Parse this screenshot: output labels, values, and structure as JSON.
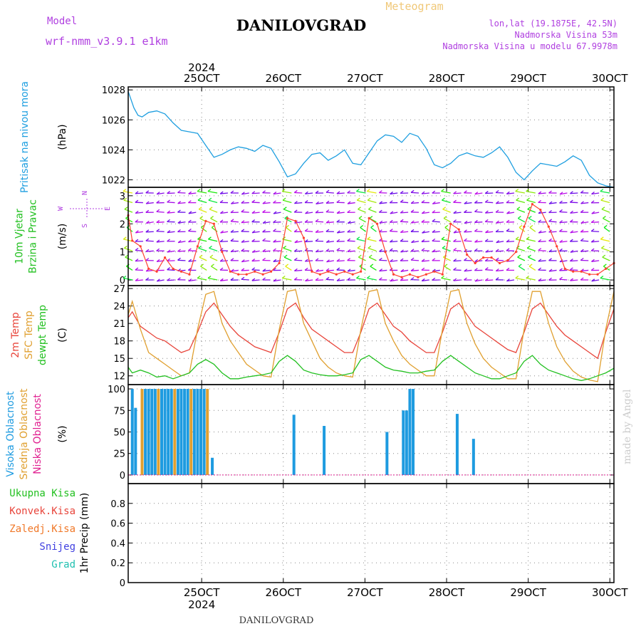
{
  "header": {
    "model_label": "Model",
    "model_value": "wrf-nmm_v3.9.1  e1km",
    "title": "DANILOVGRAD",
    "product": "Meteogram",
    "lonlat": "lon,lat (19.1875E, 42.5N)",
    "altitude": "Nadmorska Visina 53m",
    "model_altitude": "Nadmorska Visina u modelu 67.9978m"
  },
  "footer": {
    "station": "DANILOVGRAD",
    "credit": "made by Angel"
  },
  "colors": {
    "pressure": "#1f9fe0",
    "temp2m": "#e8443a",
    "sfc_temp": "#e0a030",
    "dewpoint": "#22c020",
    "cloud": "#1e9be0",
    "wind_speed": "#ff4030",
    "model_label": "#b040e0"
  },
  "chart_data": [
    {
      "type": "line",
      "panel": "pressure",
      "ylabel_lines": [
        "Pritisak na nivou mora"
      ],
      "unit": "(hPa)",
      "ylim": [
        1021.5,
        1028.2
      ],
      "yticks": [
        "1022",
        "1024",
        "1026",
        "1028"
      ],
      "xlim": [
        24.55,
        30.5
      ],
      "xticks": [
        "25OCT",
        "26OCT",
        "27OCT",
        "28OCT",
        "29OCT",
        "30OCT"
      ],
      "x_year": "2024",
      "grid": true,
      "series": [
        {
          "key": "pressure",
          "x": [
            24.55,
            24.62,
            24.67,
            24.72,
            24.8,
            24.9,
            25.0,
            25.1,
            25.2,
            25.3,
            25.4,
            25.5,
            25.6,
            25.7,
            25.8,
            25.9,
            26.0,
            26.1,
            26.2,
            26.3,
            26.4,
            26.5,
            26.6,
            26.7,
            26.8,
            26.9,
            27.0,
            27.1,
            27.2,
            27.3,
            27.4,
            27.5,
            27.6,
            27.7,
            27.8,
            27.9,
            28.0,
            28.1,
            28.2,
            28.3,
            28.4,
            28.5,
            28.6,
            28.7,
            28.8,
            28.9,
            29.0,
            29.1,
            29.2,
            29.3,
            29.4,
            29.5,
            29.6,
            29.7,
            29.8,
            29.9,
            30.0,
            30.1,
            30.2,
            30.3,
            30.4,
            30.5
          ],
          "values": [
            1027.9,
            1026.8,
            1026.3,
            1026.2,
            1026.5,
            1026.6,
            1026.4,
            1025.8,
            1025.3,
            1025.2,
            1025.1,
            1024.3,
            1023.5,
            1023.7,
            1024.0,
            1024.2,
            1024.1,
            1023.9,
            1024.3,
            1024.1,
            1023.2,
            1022.2,
            1022.4,
            1023.1,
            1023.7,
            1023.8,
            1023.3,
            1023.6,
            1024.0,
            1023.1,
            1023.0,
            1023.8,
            1024.6,
            1025.0,
            1024.9,
            1024.5,
            1025.1,
            1024.9,
            1024.1,
            1023.0,
            1022.8,
            1023.1,
            1023.6,
            1023.8,
            1023.6,
            1023.5,
            1023.8,
            1024.2,
            1023.5,
            1022.5,
            1022.0,
            1022.6,
            1023.1,
            1023.0,
            1022.9,
            1023.2,
            1023.6,
            1023.3,
            1022.3,
            1021.8,
            1021.6,
            1021.5
          ]
        }
      ]
    },
    {
      "type": "line",
      "panel": "wind",
      "ylabel_lines": [
        "10m Vjetar",
        "Brzina i Pravac"
      ],
      "unit": "(m/s)",
      "compass": [
        "N",
        "W",
        "E",
        "S"
      ],
      "ylim": [
        -0.2,
        3.3
      ],
      "yticks": [
        "0",
        "1",
        "2",
        "3"
      ],
      "grid": true,
      "series": [
        {
          "key": "wind_speed",
          "x": [
            24.55,
            24.6,
            24.7,
            24.8,
            24.9,
            25.0,
            25.1,
            25.2,
            25.3,
            25.4,
            25.5,
            25.6,
            25.7,
            25.8,
            25.9,
            26.0,
            26.1,
            26.2,
            26.3,
            26.4,
            26.5,
            26.6,
            26.7,
            26.8,
            26.9,
            27.0,
            27.1,
            27.2,
            27.3,
            27.4,
            27.5,
            27.6,
            27.7,
            27.8,
            27.9,
            28.0,
            28.1,
            28.2,
            28.3,
            28.4,
            28.5,
            28.6,
            28.7,
            28.8,
            28.9,
            29.0,
            29.1,
            29.2,
            29.3,
            29.4,
            29.5,
            29.6,
            29.7,
            29.8,
            29.9,
            30.0,
            30.1,
            30.2,
            30.3,
            30.4,
            30.5
          ],
          "values": [
            2.3,
            1.4,
            1.2,
            0.4,
            0.3,
            0.8,
            0.4,
            0.3,
            0.2,
            1.2,
            2.1,
            2.0,
            1.0,
            0.3,
            0.2,
            0.2,
            0.3,
            0.2,
            0.3,
            0.6,
            2.2,
            2.1,
            1.5,
            0.3,
            0.2,
            0.3,
            0.2,
            0.3,
            0.2,
            0.3,
            2.2,
            2.0,
            1.0,
            0.2,
            0.1,
            0.2,
            0.1,
            0.2,
            0.3,
            0.2,
            2.0,
            1.8,
            0.9,
            0.6,
            0.8,
            0.8,
            0.6,
            0.7,
            1.0,
            1.9,
            2.7,
            2.5,
            1.9,
            1.2,
            0.4,
            0.3,
            0.3,
            0.2,
            0.2,
            0.4,
            0.6
          ]
        }
      ]
    },
    {
      "type": "line",
      "panel": "temperature",
      "ylabel_lines": [
        "2m Temp",
        "SFC Temp",
        "dewpt Temp"
      ],
      "unit": "(C)",
      "ylim": [
        10.5,
        27.5
      ],
      "yticks": [
        "12",
        "15",
        "18",
        "21",
        "24",
        "27"
      ],
      "grid": true,
      "series": [
        {
          "key": "temp2m",
          "x": [
            24.55,
            24.6,
            24.7,
            24.8,
            24.9,
            25.0,
            25.1,
            25.2,
            25.3,
            25.4,
            25.5,
            25.6,
            25.7,
            25.8,
            25.9,
            26.0,
            26.1,
            26.2,
            26.3,
            26.4,
            26.5,
            26.6,
            26.7,
            26.8,
            26.9,
            27.0,
            27.1,
            27.2,
            27.3,
            27.4,
            27.5,
            27.6,
            27.7,
            27.8,
            27.9,
            28.0,
            28.1,
            28.2,
            28.3,
            28.4,
            28.5,
            28.6,
            28.7,
            28.8,
            28.9,
            29.0,
            29.1,
            29.2,
            29.3,
            29.4,
            29.5,
            29.6,
            29.7,
            29.8,
            29.9,
            30.0,
            30.1,
            30.2,
            30.3,
            30.4,
            30.5
          ],
          "values": [
            22,
            23,
            20.5,
            19.5,
            18.5,
            18,
            17,
            16,
            16.5,
            19.5,
            23,
            24.5,
            22.5,
            20.5,
            19,
            18,
            17,
            16.5,
            16,
            19.5,
            23.5,
            24.5,
            22,
            20,
            19,
            18,
            17,
            16,
            16,
            19.5,
            23.5,
            24.5,
            22.5,
            20.5,
            19.5,
            18,
            17,
            16,
            16,
            19.5,
            23.5,
            24.5,
            22.5,
            20.5,
            19.5,
            18.5,
            17.5,
            16.5,
            16,
            19.5,
            23.5,
            24.5,
            22.5,
            20.5,
            19,
            18,
            17,
            16,
            15,
            19.5,
            23.5
          ]
        },
        {
          "key": "sfc_temp",
          "x": [
            24.55,
            24.6,
            24.7,
            24.8,
            24.9,
            25.0,
            25.1,
            25.2,
            25.3,
            25.4,
            25.5,
            25.6,
            25.7,
            25.8,
            25.9,
            26.0,
            26.1,
            26.2,
            26.3,
            26.4,
            26.5,
            26.6,
            26.7,
            26.8,
            26.9,
            27.0,
            27.1,
            27.2,
            27.3,
            27.4,
            27.5,
            27.6,
            27.7,
            27.8,
            27.9,
            28.0,
            28.1,
            28.2,
            28.3,
            28.4,
            28.5,
            28.6,
            28.7,
            28.8,
            28.9,
            29.0,
            29.1,
            29.2,
            29.3,
            29.4,
            29.5,
            29.6,
            29.7,
            29.8,
            29.9,
            30.0,
            30.1,
            30.2,
            30.3,
            30.4,
            30.5
          ],
          "values": [
            22.5,
            24.8,
            20,
            16,
            15,
            14,
            13,
            12,
            12.5,
            20,
            26,
            26.5,
            21,
            18,
            16,
            14,
            13,
            12,
            11.8,
            20,
            26.5,
            26.8,
            21,
            18,
            15,
            13.5,
            12.5,
            12,
            11.8,
            20,
            26.5,
            26.8,
            21,
            18,
            15.5,
            14,
            13,
            12,
            12,
            20,
            26.5,
            26.8,
            21,
            17.5,
            15,
            13.5,
            12.5,
            11.5,
            11.5,
            20,
            26.5,
            26.5,
            21,
            17,
            14.5,
            12.8,
            11.8,
            11.3,
            11,
            20,
            26.5
          ]
        },
        {
          "key": "dewpoint",
          "x": [
            24.55,
            24.6,
            24.7,
            24.8,
            24.9,
            25.0,
            25.1,
            25.2,
            25.3,
            25.4,
            25.5,
            25.6,
            25.7,
            25.8,
            25.9,
            26.0,
            26.1,
            26.2,
            26.3,
            26.4,
            26.5,
            26.6,
            26.7,
            26.8,
            26.9,
            27.0,
            27.1,
            27.2,
            27.3,
            27.4,
            27.5,
            27.6,
            27.7,
            27.8,
            27.9,
            28.0,
            28.1,
            28.2,
            28.3,
            28.4,
            28.5,
            28.6,
            28.7,
            28.8,
            28.9,
            29.0,
            29.1,
            29.2,
            29.3,
            29.4,
            29.5,
            29.6,
            29.7,
            29.8,
            29.9,
            30.0,
            30.1,
            30.2,
            30.3,
            30.4,
            30.5
          ],
          "values": [
            13.5,
            12.5,
            13,
            12.5,
            11.8,
            12,
            11.5,
            12,
            12.5,
            14,
            14.8,
            14,
            12.5,
            11.5,
            11.5,
            11.8,
            12,
            12.2,
            12.5,
            14.5,
            15.5,
            14.5,
            13,
            12.5,
            12.2,
            12,
            12,
            12.2,
            12.5,
            14.8,
            15.5,
            14.5,
            13.5,
            13,
            12.8,
            12.5,
            12.5,
            12.8,
            13,
            14.5,
            15.5,
            14.5,
            13.5,
            12.5,
            12,
            11.5,
            11.5,
            12,
            12.5,
            14.5,
            15.5,
            14,
            13,
            12.5,
            12,
            11.5,
            11.2,
            11.5,
            12,
            12.5,
            13.3
          ]
        }
      ]
    },
    {
      "type": "bar",
      "panel": "cloud",
      "ylabel_lines": [
        "Visoka Oblacnost",
        "Srednja Oblacnost",
        "Niska Oblacnost"
      ],
      "unit": "(%)",
      "ylim": [
        -10,
        105
      ],
      "yticks": [
        "0",
        "25",
        "50",
        "75",
        "100"
      ],
      "grid": true,
      "series": [
        {
          "key": "cloud",
          "x": [
            24.6,
            24.64,
            24.72,
            24.76,
            24.8,
            24.84,
            24.88,
            24.92,
            24.96,
            25.0,
            25.04,
            25.08,
            25.12,
            25.16,
            25.2,
            25.24,
            25.28,
            25.32,
            25.36,
            25.4,
            25.44,
            25.48,
            25.52,
            25.58,
            26.58,
            26.95,
            27.72,
            27.92,
            27.96,
            28.0,
            28.04,
            28.58,
            28.78
          ],
          "values": [
            100,
            78,
            100,
            100,
            100,
            100,
            100,
            100,
            100,
            100,
            100,
            100,
            100,
            100,
            100,
            100,
            100,
            100,
            100,
            100,
            100,
            100,
            100,
            20,
            70,
            57,
            50,
            75,
            75,
            100,
            100,
            71,
            42
          ]
        }
      ]
    },
    {
      "type": "line",
      "panel": "precip",
      "ylabel_lines": [
        "Ukupna Kisa",
        "Konvek.Kisa",
        "Zaledj.Kisa",
        "Snijeg",
        "Grad"
      ],
      "unit": "1hr Precip (mm)",
      "ylim": [
        0,
        1.0
      ],
      "yticks": [
        "0",
        "0.2",
        "0.4",
        "0.6",
        "0.8"
      ],
      "grid": true,
      "series": [
        {
          "key": "precip",
          "x": [
            24.55,
            30.5
          ],
          "values": [
            0,
            0
          ]
        }
      ]
    }
  ]
}
